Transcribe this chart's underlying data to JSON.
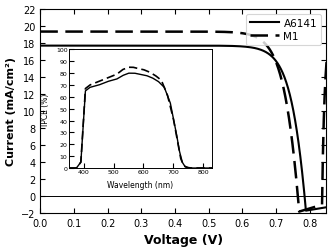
{
  "title": "",
  "xlabel": "Voltage (V)",
  "ylabel": "Current (mA/cm²)",
  "xlim": [
    0.0,
    0.85
  ],
  "ylim": [
    -2,
    22
  ],
  "yticks": [
    -2,
    0,
    2,
    4,
    6,
    8,
    10,
    12,
    14,
    16,
    18,
    20,
    22
  ],
  "xticks": [
    0.0,
    0.1,
    0.2,
    0.3,
    0.4,
    0.5,
    0.6,
    0.7,
    0.8
  ],
  "legend_labels": [
    "A6141",
    "M1"
  ],
  "bg_color": "white",
  "jv_solid": {
    "jsc": 17.65,
    "voc": 0.785,
    "n": 1.3,
    "rs": 0.5
  },
  "jv_dash": {
    "jsc": 19.3,
    "voc": 0.765,
    "n": 1.3,
    "rs": 0.5
  },
  "inset": {
    "xlim": [
      350,
      830
    ],
    "ylim": [
      0,
      100
    ],
    "xticks": [
      400,
      500,
      600,
      700,
      800
    ],
    "yticks": [
      0,
      10,
      20,
      30,
      40,
      50,
      60,
      70,
      80,
      90,
      100
    ],
    "xlabel": "Wavelength (nm)",
    "ylabel": "IPCE (%)",
    "solid_points": [
      [
        350,
        0
      ],
      [
        375,
        0
      ],
      [
        390,
        5
      ],
      [
        405,
        65
      ],
      [
        420,
        68
      ],
      [
        450,
        70
      ],
      [
        480,
        73
      ],
      [
        510,
        75
      ],
      [
        530,
        78
      ],
      [
        550,
        80
      ],
      [
        570,
        80
      ],
      [
        590,
        79
      ],
      [
        610,
        78
      ],
      [
        630,
        76
      ],
      [
        650,
        73
      ],
      [
        670,
        68
      ],
      [
        690,
        55
      ],
      [
        710,
        30
      ],
      [
        720,
        15
      ],
      [
        730,
        5
      ],
      [
        740,
        1
      ],
      [
        760,
        0
      ],
      [
        830,
        0
      ]
    ],
    "dash_points": [
      [
        350,
        0
      ],
      [
        375,
        0
      ],
      [
        390,
        5
      ],
      [
        405,
        67
      ],
      [
        420,
        70
      ],
      [
        450,
        73
      ],
      [
        480,
        76
      ],
      [
        510,
        79
      ],
      [
        530,
        83
      ],
      [
        550,
        85
      ],
      [
        565,
        85
      ],
      [
        580,
        84
      ],
      [
        600,
        83
      ],
      [
        620,
        81
      ],
      [
        640,
        78
      ],
      [
        660,
        74
      ],
      [
        680,
        62
      ],
      [
        700,
        42
      ],
      [
        715,
        22
      ],
      [
        725,
        8
      ],
      [
        735,
        2
      ],
      [
        750,
        0
      ],
      [
        830,
        0
      ]
    ]
  }
}
